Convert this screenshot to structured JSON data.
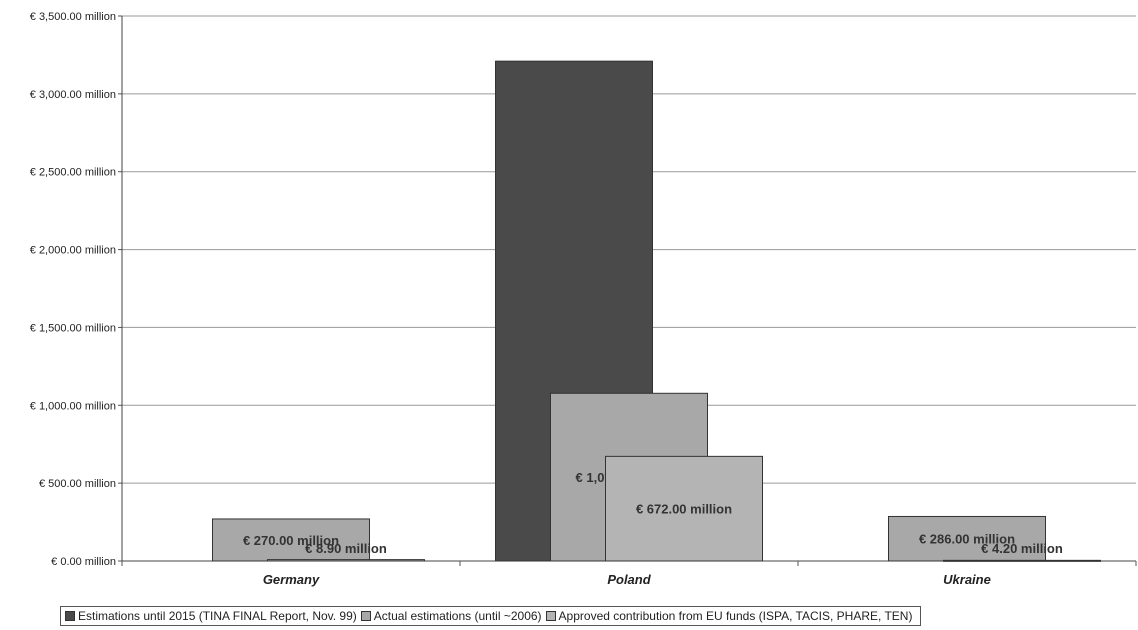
{
  "chart_data": {
    "type": "bar",
    "categories": [
      "Germany",
      "Poland",
      "Ukraine"
    ],
    "series": [
      {
        "name": "Estimations until 2015 (TINA FINAL Report, Nov. 99)",
        "values": [
          null,
          3210,
          null
        ],
        "labels": [
          "",
          "",
          ""
        ],
        "color": "#4a4a4a"
      },
      {
        "name": "Actual estimations (until ~2006)",
        "values": [
          270,
          1077,
          286
        ],
        "labels": [
          "€ 270.00 million",
          "€ 1,077.00 million",
          "€ 286.00 million"
        ],
        "color": "#a8a8a8"
      },
      {
        "name": "Approved contribution from EU funds (ISPA, TACIS, PHARE, TEN)",
        "values": [
          8.9,
          672,
          4.2
        ],
        "labels": [
          "€ 8.90 million",
          "€ 672.00 million",
          "€ 4.20 million"
        ],
        "color": "#b4b4b4"
      }
    ],
    "yticks": [
      "€ 0.00 million",
      "€ 500.00 million",
      "€ 1,000.00 million",
      "€ 1,500.00 million",
      "€ 2,000.00 million",
      "€ 2,500.00 million",
      "€ 3,000.00 million",
      "€ 3,500.00 million"
    ],
    "ylim": [
      0,
      3500
    ],
    "grid": true,
    "legend_position": "bottom",
    "title": "",
    "xlabel": "",
    "ylabel": ""
  }
}
